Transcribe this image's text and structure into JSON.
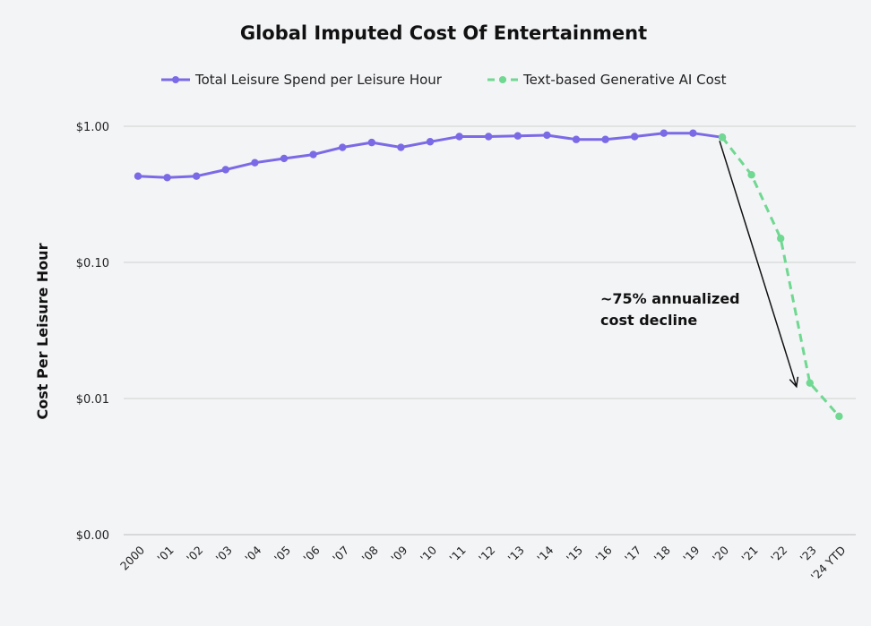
{
  "chart_data": {
    "type": "line",
    "title": "Global Imputed Cost Of Entertainment",
    "ylabel": "Cost Per Leisure Hour",
    "xlabel": "",
    "y_scale": "log",
    "ylim": [
      0.001,
      1.5
    ],
    "y_ticks": [
      {
        "value": 1,
        "label": "$1.00"
      },
      {
        "value": 0.1,
        "label": "$0.10"
      },
      {
        "value": 0.01,
        "label": "$0.01"
      },
      {
        "value": 0.001,
        "label": "$0.00"
      }
    ],
    "grid": true,
    "legend_position": "top-center",
    "categories": [
      "2000",
      "'01",
      "'02",
      "'03",
      "'04",
      "'05",
      "'06",
      "'07",
      "'08",
      "'09",
      "'10",
      "'11",
      "'12",
      "'13",
      "'14",
      "'15",
      "'16",
      "'17",
      "'18",
      "'19",
      "'20",
      "'21",
      "'22",
      "'23",
      "'24 YTD"
    ],
    "series": [
      {
        "name": "Total Leisure Spend per Leisure Hour",
        "color": "#7b6ae6",
        "style": "solid",
        "values": [
          0.43,
          0.42,
          0.43,
          0.48,
          0.54,
          0.58,
          0.62,
          0.7,
          0.76,
          0.7,
          0.77,
          0.84,
          0.84,
          0.85,
          0.86,
          0.8,
          0.8,
          0.84,
          0.89,
          0.89,
          0.83,
          null,
          null,
          null,
          null
        ]
      },
      {
        "name": "Text-based Generative AI Cost",
        "color": "#6fd891",
        "style": "dashed",
        "values": [
          null,
          null,
          null,
          null,
          null,
          null,
          null,
          null,
          null,
          null,
          null,
          null,
          null,
          null,
          null,
          null,
          null,
          null,
          null,
          null,
          0.83,
          0.44,
          0.15,
          0.013,
          0.0074
        ]
      }
    ],
    "annotations": [
      {
        "text_lines": [
          "~75% annualized",
          "cost decline"
        ],
        "arrow_from": "'20",
        "arrow_to": "'23"
      }
    ]
  }
}
